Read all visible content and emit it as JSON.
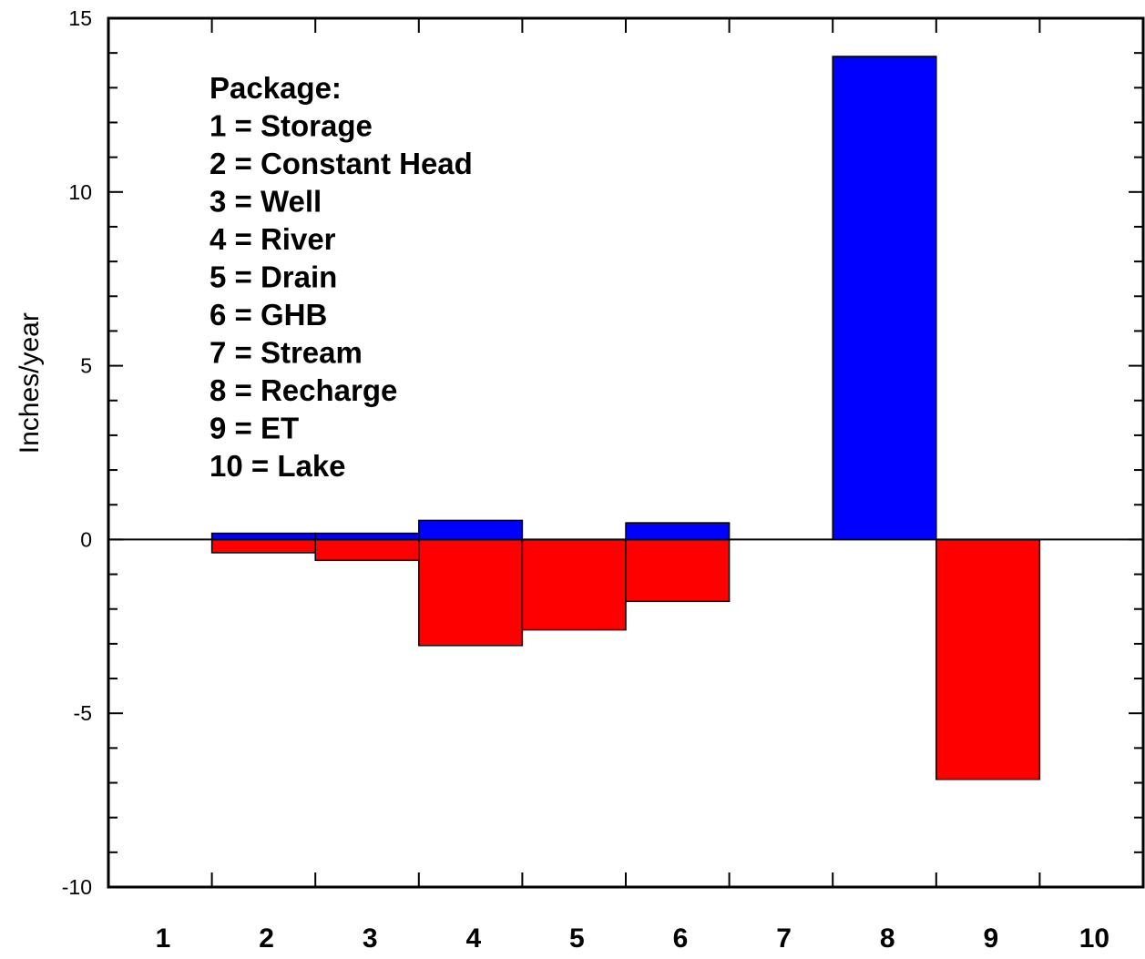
{
  "chart_data": {
    "type": "bar",
    "categories": [
      "1",
      "2",
      "3",
      "4",
      "5",
      "6",
      "7",
      "8",
      "9",
      "10"
    ],
    "series": [
      {
        "values": [
          0,
          0.18,
          0.18,
          0.55,
          0,
          0.48,
          0,
          13.9,
          0,
          0
        ],
        "color": "#0000ff"
      },
      {
        "values": [
          0,
          -0.38,
          -0.6,
          -3.05,
          -2.6,
          -1.78,
          0,
          0,
          -6.9,
          0
        ],
        "color": "#ff0000"
      }
    ],
    "ylabel": "Inches/year",
    "ylim": [
      -10,
      15
    ],
    "yticks": [
      -10,
      -5,
      0,
      5,
      10,
      15
    ],
    "ytick_labels": [
      "-10",
      "-5",
      "0",
      "5",
      "10",
      "15"
    ],
    "grid": false,
    "annotation": {
      "lines": [
        "Package:",
        "1 = Storage",
        "2 = Constant Head",
        "3 = Well",
        "4 = River",
        "5 = Drain",
        "6 = GHB",
        "7 = Stream",
        "8 = Recharge",
        "9 = ET",
        "10 = Lake"
      ]
    }
  }
}
